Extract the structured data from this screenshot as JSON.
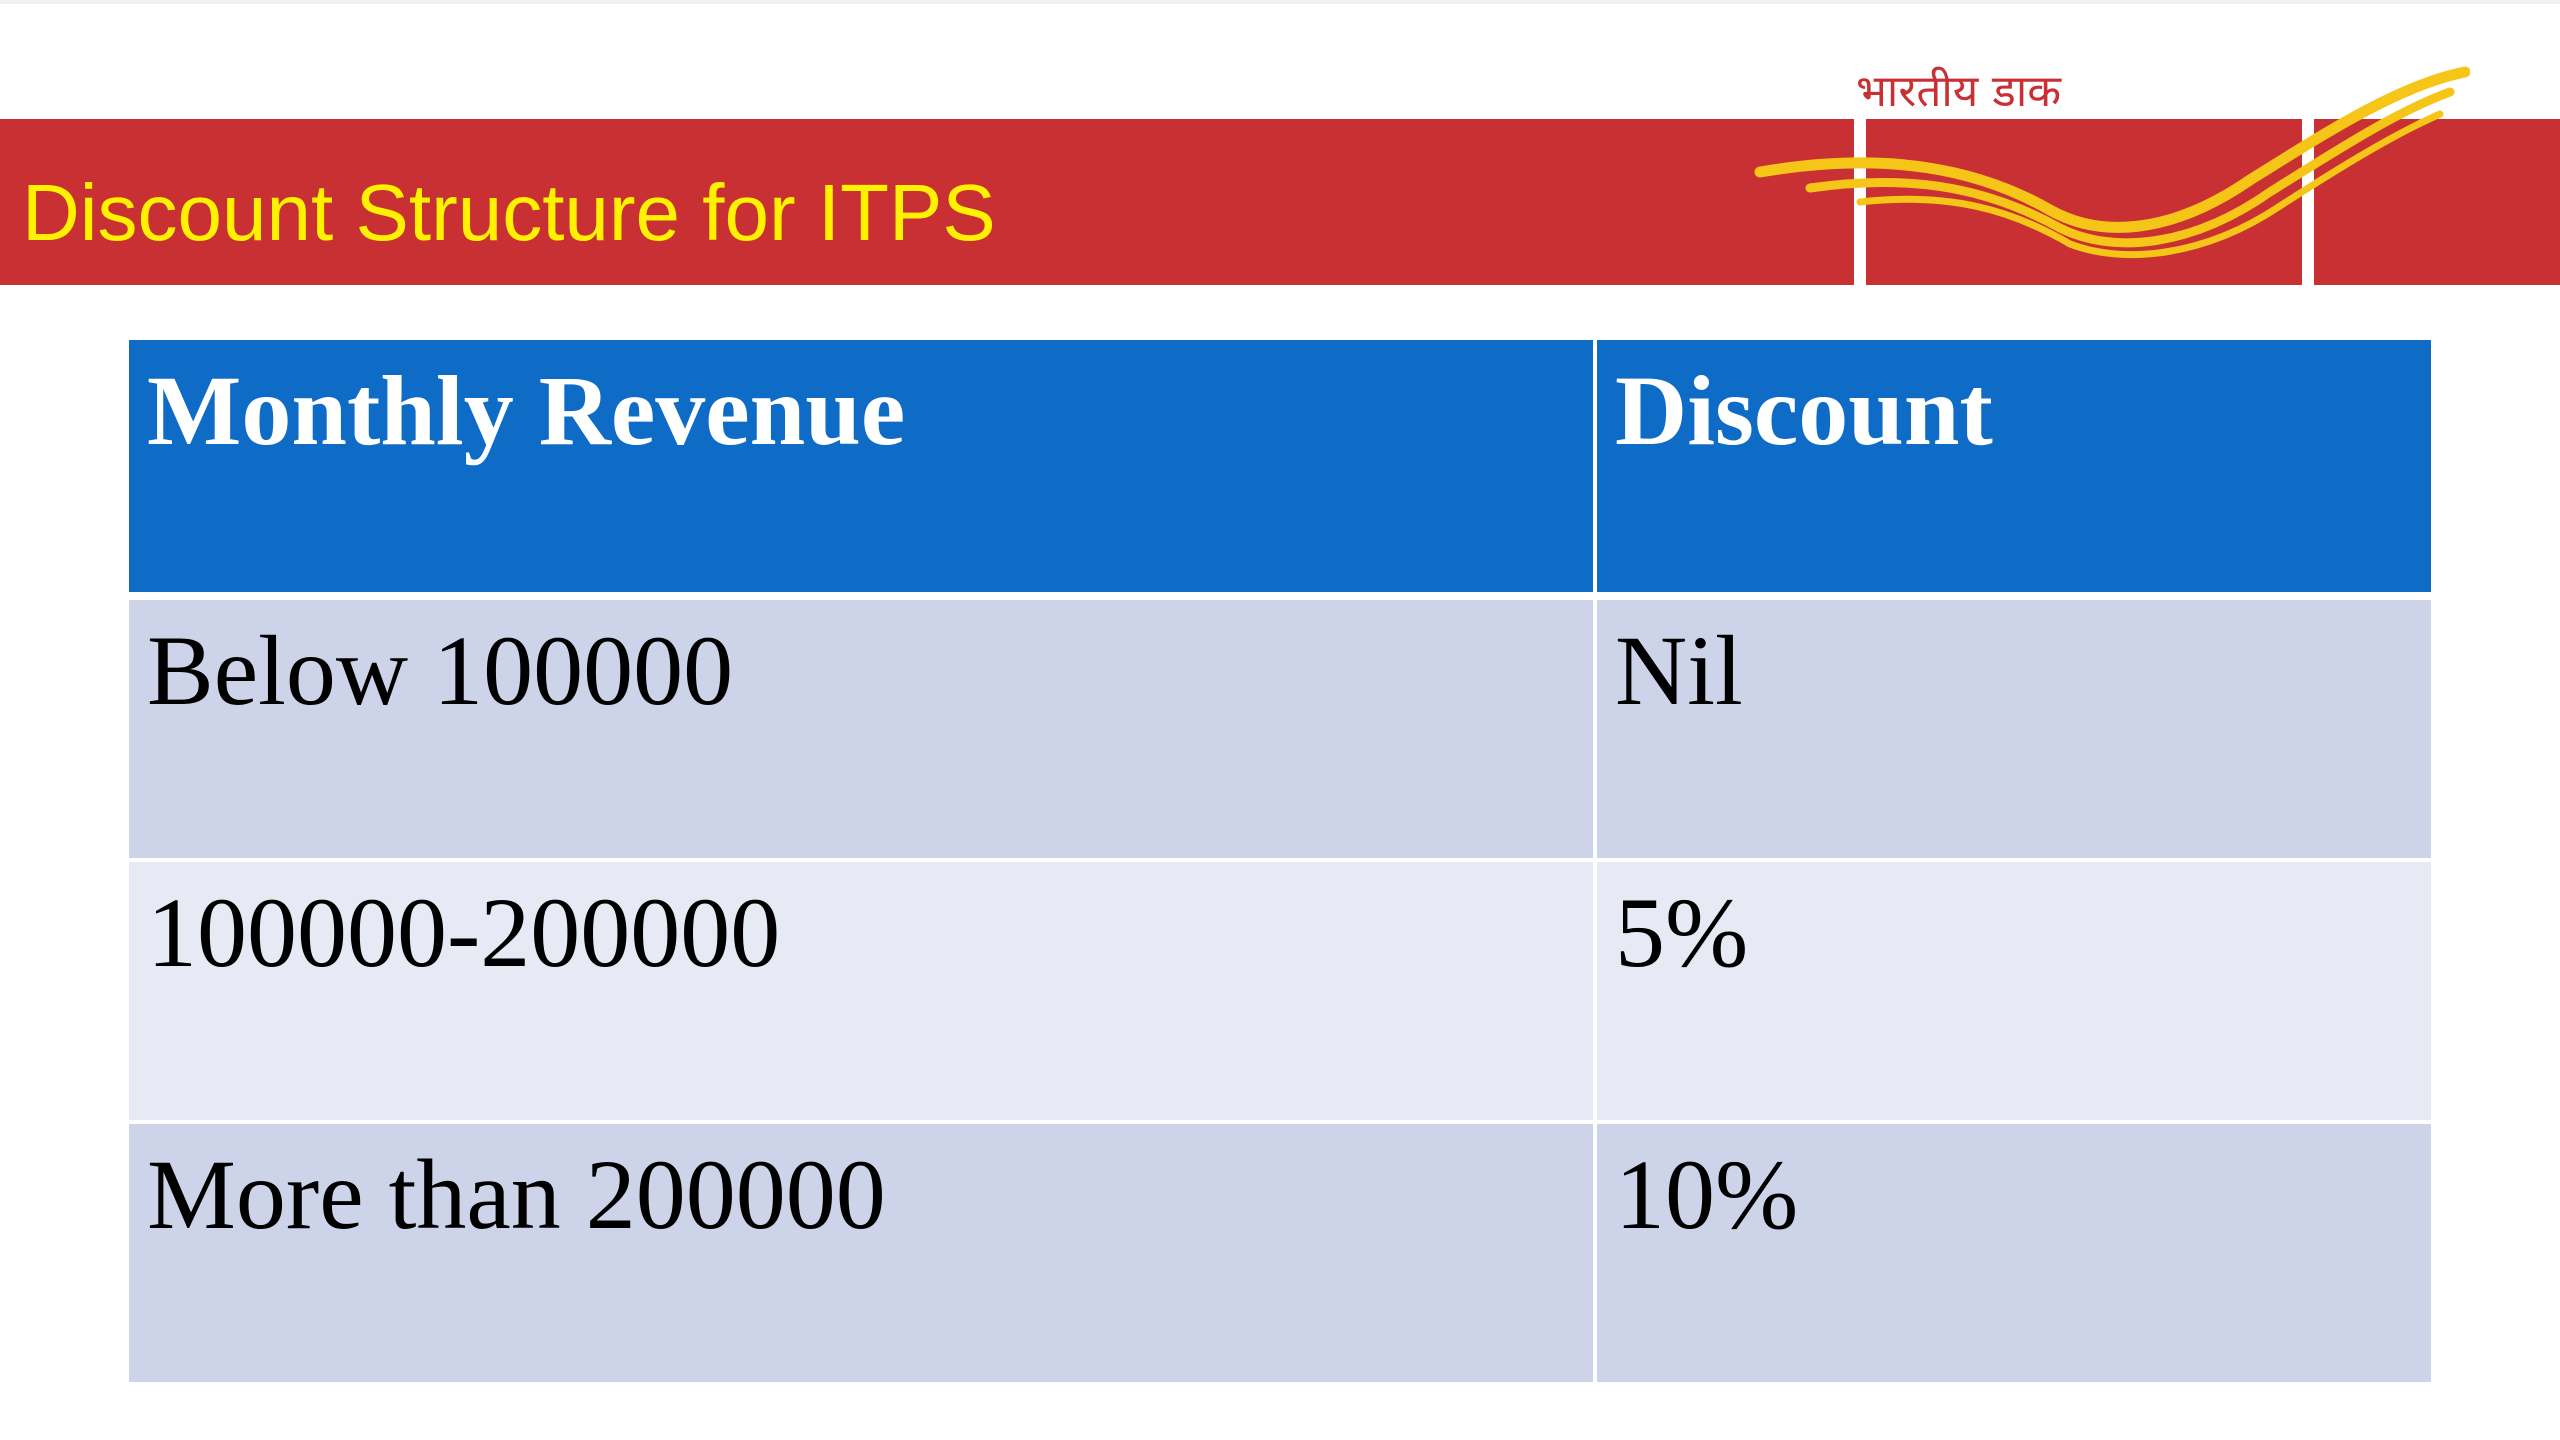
{
  "slide": {
    "title": "Discount Structure for ITPS",
    "logo": {
      "caption": "भारतीय डाक",
      "icon": "india-post-logo-icon"
    }
  },
  "colors": {
    "band": "#c93033",
    "title_text": "#fff200",
    "header_bg": "#0e6cc6",
    "row_dark": "#cdd4e9",
    "row_light": "#e7eaf5",
    "logo_wing": "#f5c518"
  },
  "table": {
    "headers": [
      "Monthly Revenue",
      "Discount"
    ],
    "rows": [
      [
        "Below 100000",
        "Nil"
      ],
      [
        "100000-200000",
        "5%"
      ],
      [
        "More than 200000",
        "10%"
      ]
    ]
  }
}
